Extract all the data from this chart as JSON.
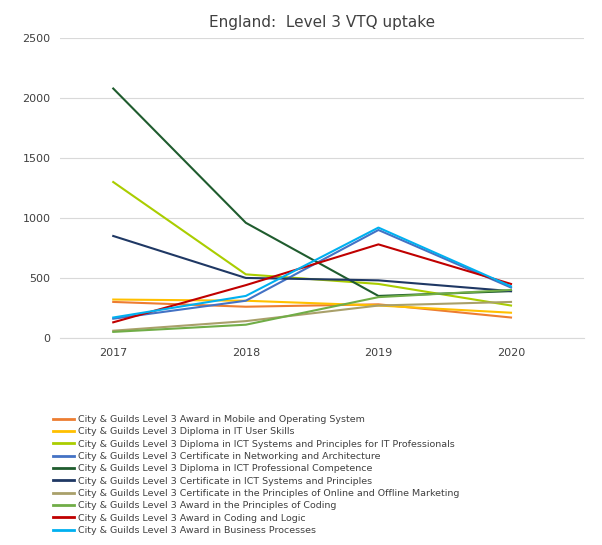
{
  "title": "England:  Level 3 VTQ uptake",
  "years": [
    2017,
    2018,
    2019,
    2020
  ],
  "series": [
    {
      "label": "City & Guilds Level 3 Award in Mobile and Operating System",
      "color": "#ED7D31",
      "values": [
        300,
        260,
        280,
        170
      ]
    },
    {
      "label": "City & Guilds Level 3 Diploma in IT User Skills",
      "color": "#FFC000",
      "values": [
        320,
        310,
        270,
        210
      ]
    },
    {
      "label": "City & Guilds Level 3 Diploma in ICT Systems and Principles for IT Professionals",
      "color": "#AACD00",
      "values": [
        1300,
        530,
        450,
        270
      ]
    },
    {
      "label": "City & Guilds Level 3 Certificate in Networking and Architecture",
      "color": "#4472C4",
      "values": [
        160,
        310,
        900,
        420
      ]
    },
    {
      "label": "City & Guilds Level 3 Diploma in ICT Professional Competence",
      "color": "#1F5C2E",
      "values": [
        2080,
        960,
        350,
        390
      ]
    },
    {
      "label": "City & Guilds Level 3 Certificate in ICT Systems and Principles",
      "color": "#1F3864",
      "values": [
        850,
        500,
        480,
        390
      ]
    },
    {
      "label": "City & Guilds Level 3 Certificate in the Principles of Online and Offline Marketing",
      "color": "#A9A06A",
      "values": [
        60,
        140,
        270,
        300
      ]
    },
    {
      "label": "City & Guilds Level 3 Award in the Principles of Coding",
      "color": "#70AD47",
      "values": [
        50,
        110,
        340,
        400
      ]
    },
    {
      "label": "City & Guilds Level 3 Award in Coding and Logic",
      "color": "#C00000",
      "values": [
        130,
        440,
        780,
        450
      ]
    },
    {
      "label": "City & Guilds Level 3 Award in Business Processes",
      "color": "#00B0F0",
      "values": [
        170,
        350,
        920,
        430
      ]
    }
  ],
  "ylim": [
    0,
    2500
  ],
  "yticks": [
    0,
    500,
    1000,
    1500,
    2000,
    2500
  ],
  "background_color": "#FFFFFF",
  "grid_color": "#D9D9D9",
  "title_fontsize": 11,
  "tick_fontsize": 8,
  "legend_fontsize": 6.8
}
